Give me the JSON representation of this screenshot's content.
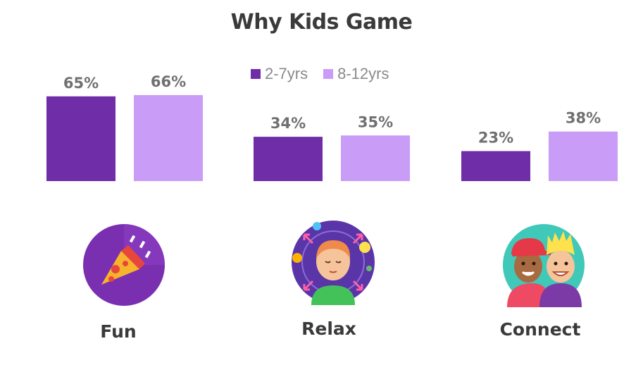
{
  "chart_data": {
    "type": "bar",
    "title": "Why Kids Game",
    "categories": [
      "Fun",
      "Relax",
      "Connect"
    ],
    "series": [
      {
        "name": "2-7yrs",
        "values": [
          65,
          34,
          23
        ],
        "labels": [
          "65%",
          "34%",
          "23%"
        ]
      },
      {
        "name": "8-12yrs",
        "values": [
          66,
          35,
          38
        ],
        "labels": [
          "66%",
          "35%",
          "38%"
        ]
      }
    ],
    "ylim": [
      0,
      100
    ],
    "grid": false,
    "legend_position": "top-center",
    "colors": {
      "series_1": "#6f2da8",
      "series_2": "#c99cf7",
      "label_text": "#707070"
    }
  },
  "icons": [
    "party-popper-pizza-icon",
    "relaxed-child-icon",
    "two-kids-icon"
  ]
}
